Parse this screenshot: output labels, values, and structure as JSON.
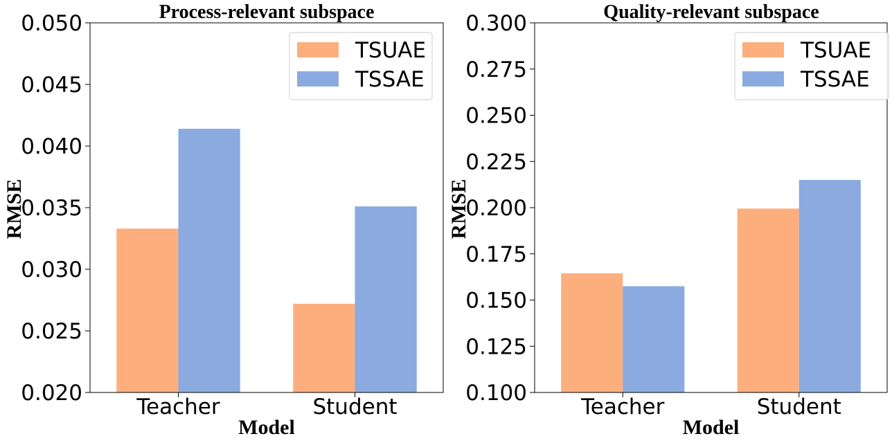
{
  "chart_data": [
    {
      "type": "bar",
      "title": "Process-relevant subspace",
      "xlabel": "Model",
      "ylabel": "RMSE",
      "categories": [
        "Teacher",
        "Student"
      ],
      "series": [
        {
          "name": "TSUAE",
          "color": "#fdae7d",
          "values": [
            0.0333,
            0.0272
          ]
        },
        {
          "name": "TSSAE",
          "color": "#8aaae0",
          "values": [
            0.0414,
            0.0351
          ]
        }
      ],
      "ylim": [
        0.02,
        0.05
      ],
      "yticks": [
        "0.020",
        "0.025",
        "0.030",
        "0.035",
        "0.040",
        "0.045",
        "0.050"
      ],
      "legend_position": "top-right",
      "grid": false
    },
    {
      "type": "bar",
      "title": "Quality-relevant subspace",
      "xlabel": "Model",
      "ylabel": "RMSE",
      "categories": [
        "Teacher",
        "Student"
      ],
      "series": [
        {
          "name": "TSUAE",
          "color": "#fdae7d",
          "values": [
            0.1645,
            0.1995
          ]
        },
        {
          "name": "TSSAE",
          "color": "#8aaae0",
          "values": [
            0.1575,
            0.215
          ]
        }
      ],
      "ylim": [
        0.1,
        0.3
      ],
      "yticks": [
        "0.100",
        "0.125",
        "0.150",
        "0.175",
        "0.200",
        "0.225",
        "0.250",
        "0.275",
        "0.300"
      ],
      "legend_position": "top-right",
      "grid": false
    }
  ]
}
